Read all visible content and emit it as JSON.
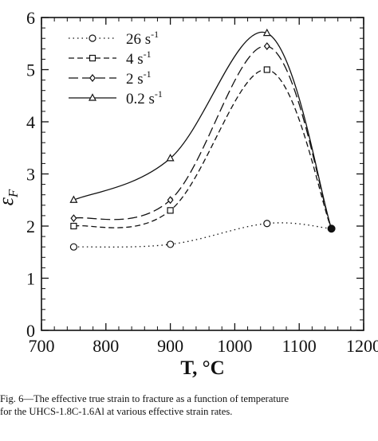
{
  "chart_data": {
    "type": "line",
    "title": "",
    "xlabel": "T, °C",
    "ylabel_main": "ε",
    "ylabel_sub": "F",
    "xlim": [
      700,
      1200
    ],
    "ylim": [
      0,
      6
    ],
    "x_ticks": [
      700,
      800,
      900,
      1000,
      1100,
      1200
    ],
    "x_tick_labels": [
      "700",
      "800",
      "900",
      "1000",
      "1100",
      "1200"
    ],
    "y_ticks": [
      0,
      1,
      2,
      3,
      4,
      5,
      6
    ],
    "y_tick_labels": [
      "0",
      "1",
      "2",
      "3",
      "4",
      "5",
      "6"
    ],
    "legend_position": "top-left",
    "series": [
      {
        "name": "26 s-1",
        "name_base": "26 s",
        "name_exp": "-1",
        "marker": "circle",
        "line_style": "dotted",
        "x": [
          750,
          900,
          1050,
          1150
        ],
        "y": [
          1.6,
          1.65,
          2.05,
          1.95
        ]
      },
      {
        "name": "4 s-1",
        "name_base": "4 s",
        "name_exp": "-1",
        "marker": "square",
        "line_style": "dashed",
        "x": [
          750,
          900,
          1050,
          1150
        ],
        "y": [
          2.0,
          2.3,
          5.0,
          1.95
        ]
      },
      {
        "name": "2 s-1",
        "name_base": "2 s",
        "name_exp": "-1",
        "marker": "diamond",
        "line_style": "long-dashed",
        "x": [
          750,
          900,
          1050,
          1150
        ],
        "y": [
          2.15,
          2.5,
          5.45,
          1.95
        ]
      },
      {
        "name": "0.2 s-1",
        "name_base": "0.2 s",
        "name_exp": "-1",
        "marker": "triangle",
        "line_style": "solid",
        "x": [
          750,
          900,
          1050,
          1150
        ],
        "y": [
          2.5,
          3.3,
          5.7,
          1.95
        ]
      }
    ],
    "common_point": {
      "x": 1150,
      "y": 1.95
    }
  },
  "caption": {
    "line1": "Fig. 6—The effective true strain to fracture as a function of temperature",
    "line2": "for the UHCS-1.8C-1.6Al at various effective strain rates."
  }
}
